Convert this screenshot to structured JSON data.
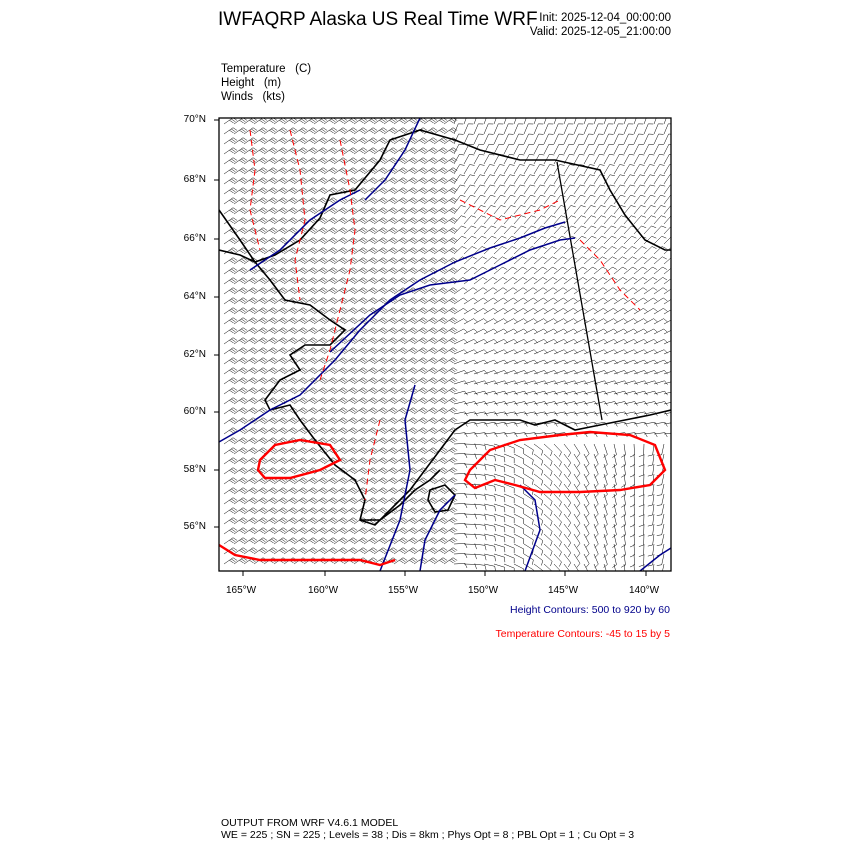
{
  "header": {
    "title": "IWFAQRP Alaska US Real Time WRF",
    "init": "Init: 2025-12-04_00:00:00",
    "valid": "Valid: 2025-12-05_21:00:00"
  },
  "fields": [
    {
      "name": "Temperature",
      "unit": "(C)"
    },
    {
      "name": "Height",
      "unit": "(m)"
    },
    {
      "name": "Winds",
      "unit": "(kts)"
    }
  ],
  "map": {
    "lat_ticks": [
      "70°N",
      "68°N",
      "66°N",
      "64°N",
      "62°N",
      "60°N",
      "58°N",
      "56°N"
    ],
    "lon_ticks": [
      "165°W",
      "160°W",
      "155°W",
      "150°W",
      "145°W",
      "140°W"
    ],
    "colors": {
      "height": "#00008b",
      "temperature": "#ff0000",
      "coast": "#000000",
      "barbs": "#000000"
    }
  },
  "legend": {
    "height_contours": "Height Contours: 500 to 920 by 60",
    "temperature_contours": "Temperature Contours: -45 to 15 by 5"
  },
  "footer": {
    "line1": "OUTPUT FROM WRF V4.6.1 MODEL",
    "line2": "WE = 225 ; SN = 225 ; Levels = 38 ; Dis = 8km ; Phys Opt = 8 ; PBL Opt = 1 ; Cu Opt = 3"
  }
}
